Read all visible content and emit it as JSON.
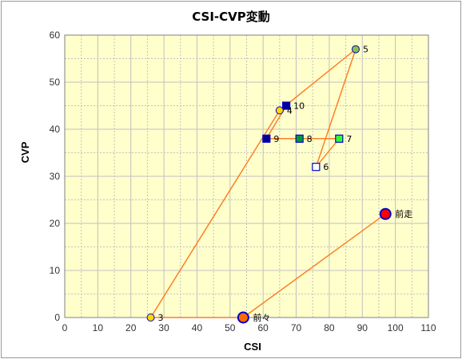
{
  "chart_data": {
    "type": "scatter",
    "title": "CSI-CVP変動",
    "xlabel": "CSI",
    "ylabel": "CVP",
    "xlim": [
      0,
      110
    ],
    "ylim": [
      0,
      60
    ],
    "xticks": [
      0,
      10,
      20,
      30,
      40,
      50,
      60,
      70,
      80,
      90,
      100,
      110
    ],
    "yticks": [
      0,
      10,
      20,
      30,
      40,
      50,
      60
    ],
    "grid": true,
    "plot_background": "#ffffcc",
    "grid_color": "#c0c0c0",
    "line_color": "#ff7f27",
    "points": [
      {
        "label": "前走",
        "x": 97,
        "y": 22,
        "shape": "circle",
        "fill": "#ff0000",
        "stroke": "#0000cc",
        "size": "large"
      },
      {
        "label": "前々",
        "x": 54,
        "y": 0,
        "shape": "circle",
        "fill": "#ff6a00",
        "stroke": "#0000cc",
        "size": "large"
      },
      {
        "label": "3",
        "x": 26,
        "y": 0,
        "shape": "circle",
        "fill": "#ffd700",
        "stroke": "#0000cc",
        "size": "small"
      },
      {
        "label": "4",
        "x": 65,
        "y": 44,
        "shape": "circle",
        "fill": "#ffd700",
        "stroke": "#0000cc",
        "size": "small"
      },
      {
        "label": "5",
        "x": 88,
        "y": 57,
        "shape": "circle",
        "fill": "#8bc34a",
        "stroke": "#0000cc",
        "size": "small"
      },
      {
        "label": "6",
        "x": 76,
        "y": 32,
        "shape": "square",
        "fill": "#ffffff",
        "stroke": "#0000cc",
        "size": "small"
      },
      {
        "label": "7",
        "x": 83,
        "y": 38,
        "shape": "square",
        "fill": "#33ff33",
        "stroke": "#0000cc",
        "size": "small"
      },
      {
        "label": "8",
        "x": 71,
        "y": 38,
        "shape": "square",
        "fill": "#009933",
        "stroke": "#0000cc",
        "size": "small"
      },
      {
        "label": "9",
        "x": 61,
        "y": 38,
        "shape": "square",
        "fill": "#000099",
        "stroke": "#0000cc",
        "size": "small"
      },
      {
        "label": "10",
        "x": 67,
        "y": 45,
        "shape": "square",
        "fill": "#000099",
        "stroke": "#0000cc",
        "size": "small"
      }
    ]
  }
}
